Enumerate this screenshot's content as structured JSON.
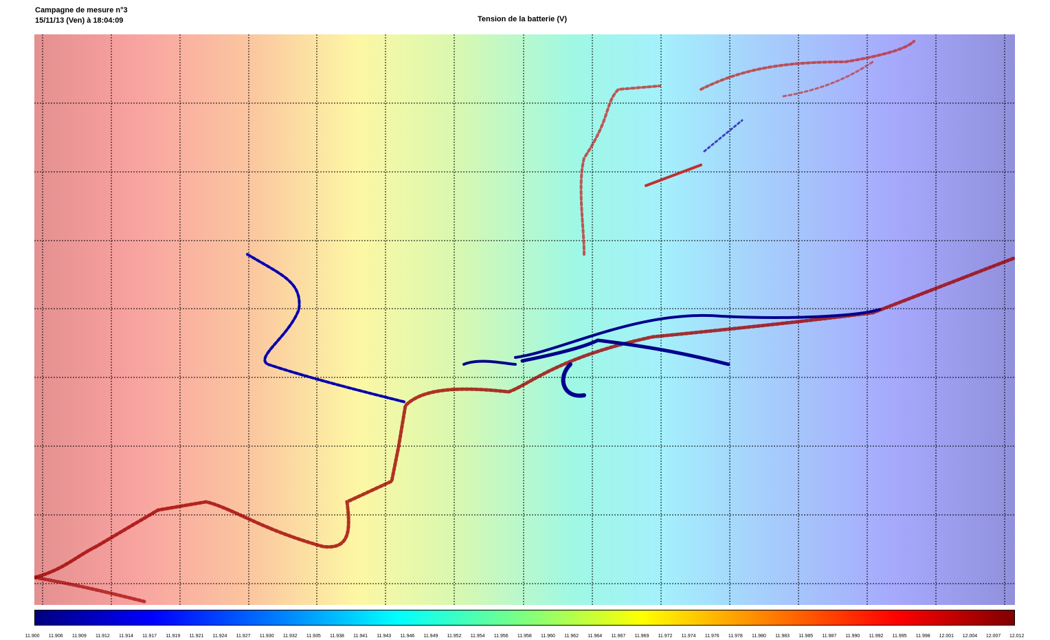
{
  "header": {
    "campaign": "Campagne de mesure n°3",
    "datetime": "15/11/13 (Ven) à 18:04:09",
    "title": "Tension de la batterie (V)"
  },
  "colorbar": {
    "ticks": [
      "11.900",
      "11.906",
      "11.909",
      "11.912",
      "11.914",
      "11.917",
      "11.919",
      "11.921",
      "11.924",
      "11.927",
      "11.930",
      "11.932",
      "11.935",
      "11.938",
      "11.941",
      "11.943",
      "11.946",
      "11.949",
      "11.952",
      "11.954",
      "11.956",
      "11.958",
      "11.960",
      "11.962",
      "11.964",
      "11.967",
      "11.969",
      "11.972",
      "11.974",
      "11.976",
      "11.978",
      "11.980",
      "11.983",
      "11.985",
      "11.987",
      "11.990",
      "11.992",
      "11.995",
      "11.998",
      "12.001",
      "12.004",
      "12.007",
      "12.012"
    ]
  }
}
